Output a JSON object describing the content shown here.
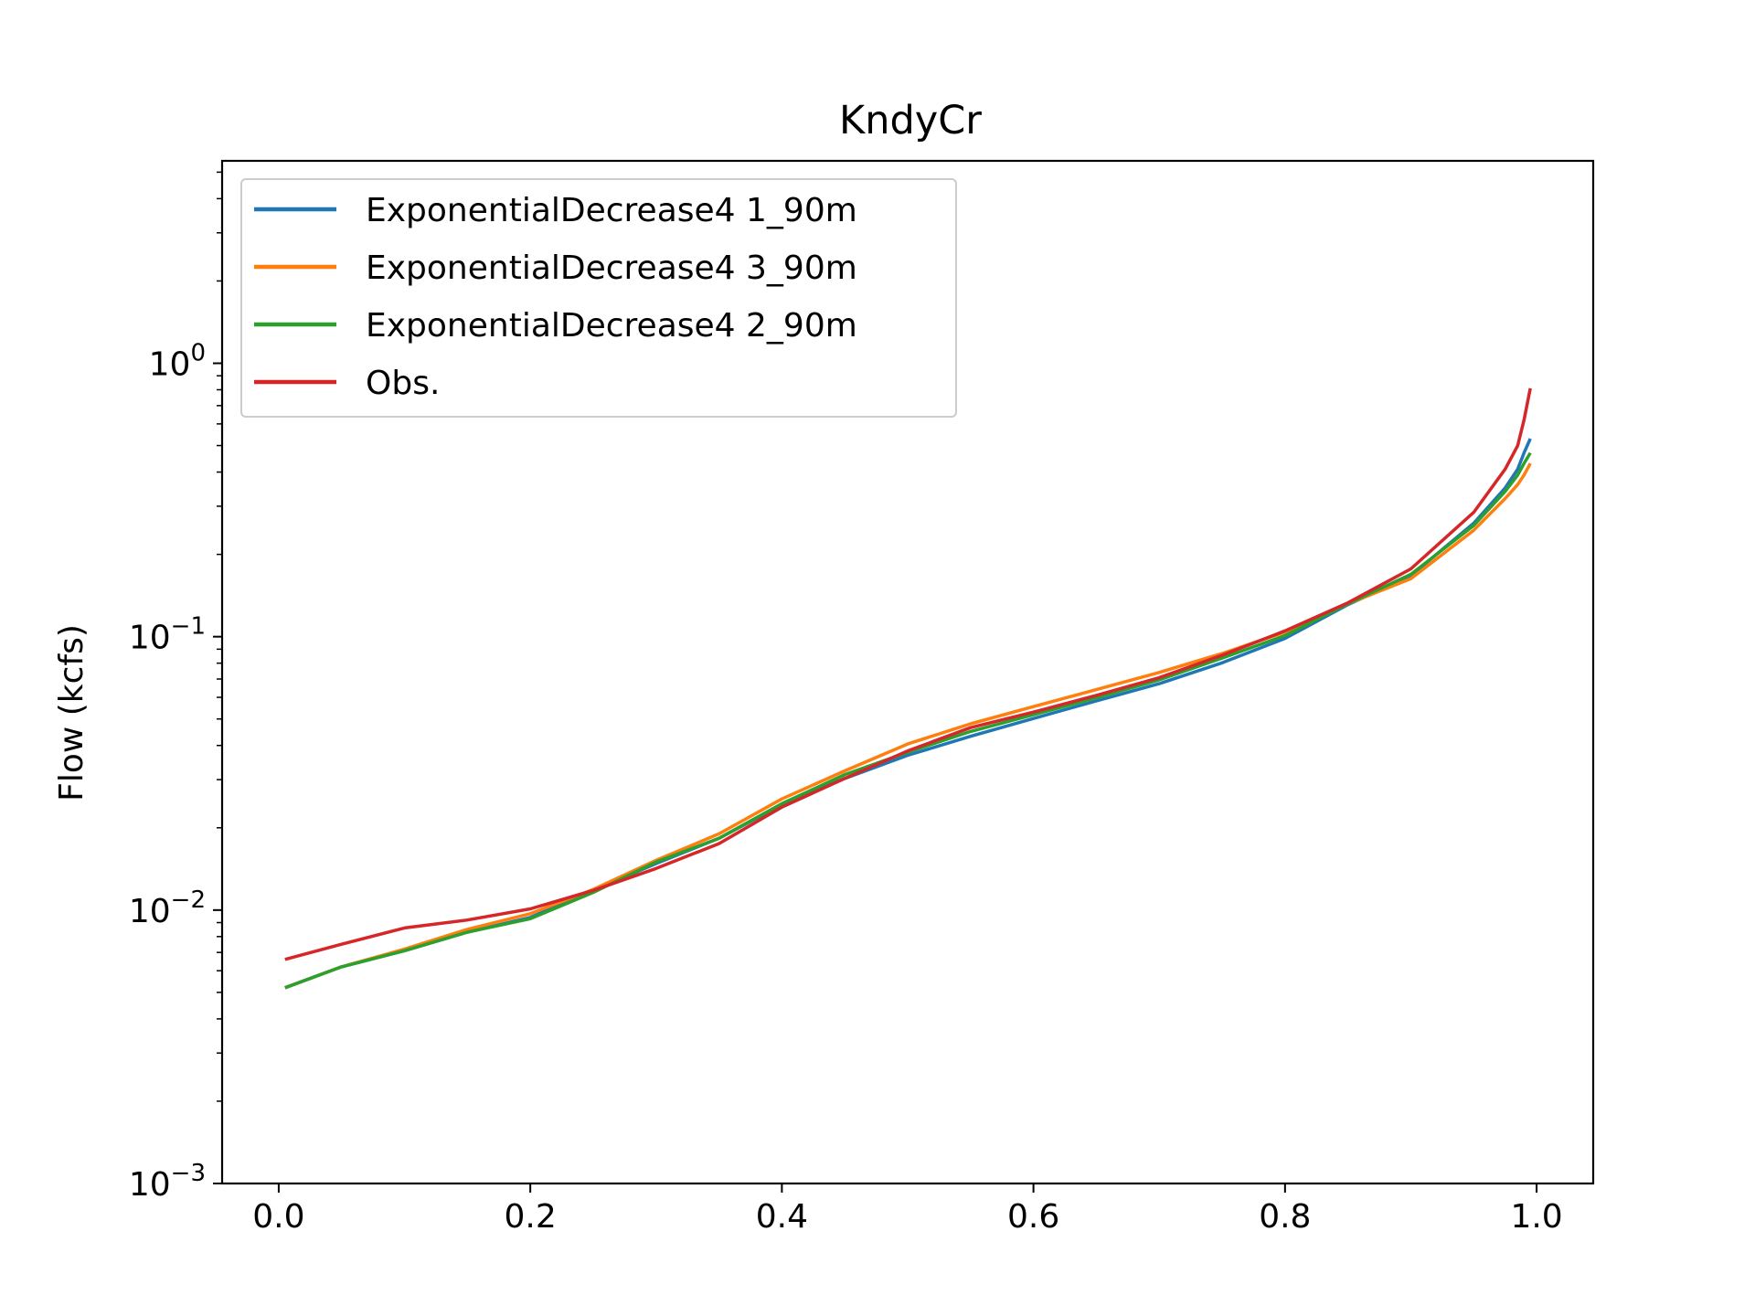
{
  "chart_data": {
    "type": "line",
    "title": "KndyCr",
    "xlabel": "",
    "ylabel": "Flow (kcfs)",
    "xlim": [
      -0.045,
      1.045
    ],
    "ylim": [
      0.001,
      5.5
    ],
    "yscale": "log",
    "grid": false,
    "legend_position": "upper-left",
    "x_ticks": [
      "0.0",
      "0.2",
      "0.4",
      "0.6",
      "0.8",
      "1.0"
    ],
    "y_ticks": [
      {
        "base": "10",
        "exp": "0"
      },
      {
        "base": "10",
        "exp": "−1"
      },
      {
        "base": "10",
        "exp": "−2"
      },
      {
        "base": "10",
        "exp": "−3"
      }
    ],
    "series": [
      {
        "name": "ExponentialDecrease4 1_90m",
        "color": "#1f77b4",
        "points": [
          [
            0.005,
            0.0052
          ],
          [
            0.05,
            0.0062
          ],
          [
            0.1,
            0.0071
          ],
          [
            0.15,
            0.0083
          ],
          [
            0.2,
            0.0094
          ],
          [
            0.25,
            0.0118
          ],
          [
            0.3,
            0.0148
          ],
          [
            0.35,
            0.0183
          ],
          [
            0.4,
            0.0243
          ],
          [
            0.45,
            0.0303
          ],
          [
            0.5,
            0.0368
          ],
          [
            0.55,
            0.0432
          ],
          [
            0.6,
            0.0502
          ],
          [
            0.65,
            0.0582
          ],
          [
            0.7,
            0.0673
          ],
          [
            0.75,
            0.0802
          ],
          [
            0.8,
            0.0985
          ],
          [
            0.85,
            0.131
          ],
          [
            0.9,
            0.167
          ],
          [
            0.95,
            0.26
          ],
          [
            0.975,
            0.35
          ],
          [
            0.985,
            0.41
          ],
          [
            0.99,
            0.47
          ],
          [
            0.995,
            0.53
          ]
        ]
      },
      {
        "name": "ExponentialDecrease4 3_90m",
        "color": "#ff7f0e",
        "points": [
          [
            0.005,
            0.0052
          ],
          [
            0.05,
            0.0062
          ],
          [
            0.1,
            0.0072
          ],
          [
            0.15,
            0.0085
          ],
          [
            0.2,
            0.0097
          ],
          [
            0.25,
            0.0119
          ],
          [
            0.3,
            0.0152
          ],
          [
            0.35,
            0.019
          ],
          [
            0.4,
            0.0255
          ],
          [
            0.45,
            0.0323
          ],
          [
            0.5,
            0.0405
          ],
          [
            0.55,
            0.048
          ],
          [
            0.6,
            0.0555
          ],
          [
            0.65,
            0.064
          ],
          [
            0.7,
            0.074
          ],
          [
            0.75,
            0.0868
          ],
          [
            0.8,
            0.104
          ],
          [
            0.85,
            0.132
          ],
          [
            0.9,
            0.163
          ],
          [
            0.95,
            0.245
          ],
          [
            0.975,
            0.32
          ],
          [
            0.985,
            0.36
          ],
          [
            0.99,
            0.39
          ],
          [
            0.995,
            0.43
          ]
        ]
      },
      {
        "name": "ExponentialDecrease4 2_90m",
        "color": "#2ca02c",
        "points": [
          [
            0.005,
            0.0052
          ],
          [
            0.05,
            0.0062
          ],
          [
            0.1,
            0.0071
          ],
          [
            0.15,
            0.0083
          ],
          [
            0.2,
            0.0093
          ],
          [
            0.25,
            0.0116
          ],
          [
            0.3,
            0.015
          ],
          [
            0.35,
            0.0183
          ],
          [
            0.4,
            0.0245
          ],
          [
            0.45,
            0.0313
          ],
          [
            0.5,
            0.0378
          ],
          [
            0.55,
            0.045
          ],
          [
            0.6,
            0.0518
          ],
          [
            0.65,
            0.0598
          ],
          [
            0.7,
            0.0695
          ],
          [
            0.75,
            0.0835
          ],
          [
            0.8,
            0.101
          ],
          [
            0.85,
            0.132
          ],
          [
            0.9,
            0.169
          ],
          [
            0.95,
            0.255
          ],
          [
            0.975,
            0.34
          ],
          [
            0.985,
            0.39
          ],
          [
            0.99,
            0.43
          ],
          [
            0.995,
            0.47
          ]
        ]
      },
      {
        "name": "Obs.",
        "color": "#d62728",
        "points": [
          [
            0.005,
            0.0066
          ],
          [
            0.05,
            0.0075
          ],
          [
            0.1,
            0.0086
          ],
          [
            0.15,
            0.0092
          ],
          [
            0.2,
            0.0101
          ],
          [
            0.25,
            0.0118
          ],
          [
            0.3,
            0.0142
          ],
          [
            0.35,
            0.0175
          ],
          [
            0.4,
            0.0238
          ],
          [
            0.45,
            0.0303
          ],
          [
            0.5,
            0.0382
          ],
          [
            0.55,
            0.0465
          ],
          [
            0.6,
            0.053
          ],
          [
            0.65,
            0.061
          ],
          [
            0.7,
            0.0708
          ],
          [
            0.75,
            0.0855
          ],
          [
            0.8,
            0.105
          ],
          [
            0.85,
            0.133
          ],
          [
            0.9,
            0.177
          ],
          [
            0.95,
            0.285
          ],
          [
            0.975,
            0.41
          ],
          [
            0.985,
            0.5
          ],
          [
            0.99,
            0.62
          ],
          [
            0.995,
            0.81
          ]
        ]
      }
    ]
  }
}
